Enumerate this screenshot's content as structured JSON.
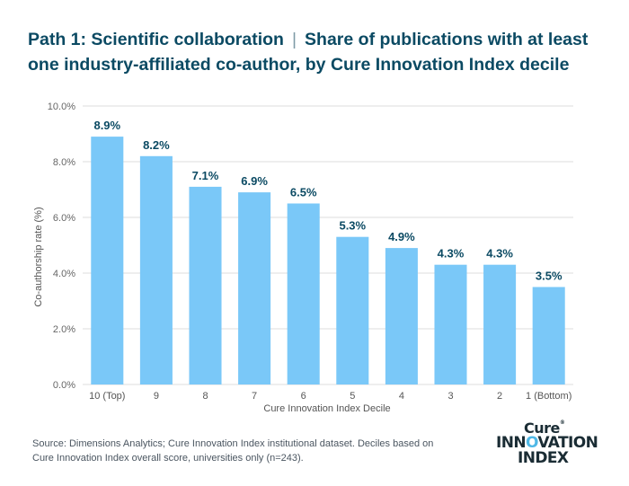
{
  "title": {
    "part1": "Path 1: Scientific collaboration",
    "separator": "|",
    "part2": "Share of publications with at least one industry-affiliated co-author, by Cure Innovation Index decile"
  },
  "chart_data": {
    "type": "bar",
    "categories": [
      "10 (Top)",
      "9",
      "8",
      "7",
      "6",
      "5",
      "4",
      "3",
      "2",
      "1 (Bottom)"
    ],
    "values": [
      8.9,
      8.2,
      7.1,
      6.9,
      6.5,
      5.3,
      4.9,
      4.3,
      4.3,
      3.5
    ],
    "value_labels": [
      "8.9%",
      "8.2%",
      "7.1%",
      "6.9%",
      "6.5%",
      "5.3%",
      "4.9%",
      "4.3%",
      "4.3%",
      "3.5%"
    ],
    "xlabel": "Cure Innovation Index Decile",
    "ylabel": "Co-authorship rate (%)",
    "ylim": [
      0,
      10
    ],
    "yticks": [
      0,
      2,
      4,
      6,
      8,
      10
    ],
    "ytick_labels": [
      "0.0%",
      "2.0%",
      "4.0%",
      "6.0%",
      "8.0%",
      "10.0%"
    ],
    "grid": true,
    "bar_color": "#7ac8f8"
  },
  "footnote": "Source: Dimensions Analytics; Cure Innovation Index institutional dataset. Deciles based on Cure Innovation Index overall score, universities only (n=243).",
  "logo": {
    "line1": "Cure",
    "line2_a": "INN",
    "line2_o": "O",
    "line2_b": "VATION",
    "line3": "INDEX"
  }
}
